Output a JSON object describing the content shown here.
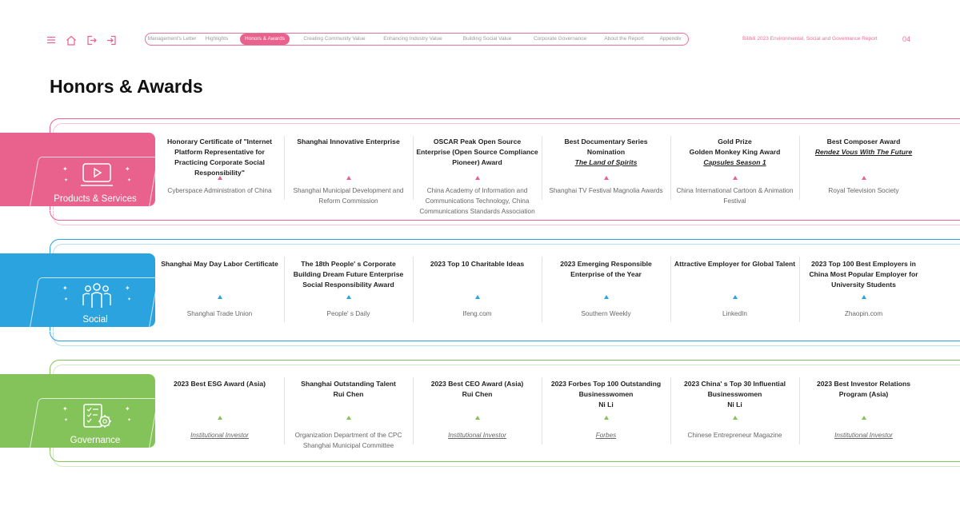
{
  "nav": {
    "icons": [
      "menu-icon",
      "home-icon",
      "exit-icon",
      "enter-icon"
    ],
    "items": [
      {
        "label": "Management's Letter"
      },
      {
        "label": "Highlights"
      },
      {
        "label": "Honors & Awards",
        "active": true
      },
      {
        "label": "Creating Community Value"
      },
      {
        "label": "Enhancing Industry Value"
      },
      {
        "label": "Building Social Value"
      },
      {
        "label": "Corporate Governance"
      },
      {
        "label": "About the Report"
      },
      {
        "label": "Appendix"
      }
    ],
    "report_title": "Bilibili 2023 Environmental, Social and Governance Report",
    "page_number": "04"
  },
  "heading": "Honors & Awards",
  "colors": {
    "pink": "#e9618d",
    "blue": "#2ba3de",
    "green": "#84c35a"
  },
  "sections": [
    {
      "title": "Products & Services",
      "icon": "video-play-icon",
      "awards": [
        {
          "name": "Honorary Certificate of \"Internet Platform Representative for Practicing Corporate Social Responsibility\"",
          "source": "Cyberspace Administration of China"
        },
        {
          "name": "Shanghai Innovative Enterprise",
          "source": "Shanghai Municipal Development and Reform Commission"
        },
        {
          "name": "OSCAR Peak Open Source Enterprise (Open Source Compliance Pioneer) Award",
          "source": "China Academy of Information and Communications Technology, China Communications Standards Association"
        },
        {
          "name": "Best Documentary Series Nomination",
          "name_italic": "The Land of Spirits",
          "source": "Shanghai TV Festival Magnolia Awards"
        },
        {
          "name": "Gold Prize",
          "name_line2": "Golden Monkey King Award",
          "name_italic": "Capsules Season 1",
          "source": "China International Cartoon & Animation Festival"
        },
        {
          "name": "Best Composer Award",
          "name_italic": "Rendez Vous With The Future",
          "source": "Royal Television Society"
        }
      ]
    },
    {
      "title": "Social",
      "icon": "people-group-icon",
      "awards": [
        {
          "name": "Shanghai May Day Labor Certificate",
          "source": "Shanghai Trade Union"
        },
        {
          "name": "The 18th People' s Corporate Building Dream Future Enterprise Social Responsibility Award",
          "source": "People' s Daily"
        },
        {
          "name": "2023 Top 10 Charitable Ideas",
          "source": "Ifeng.com"
        },
        {
          "name": "2023 Emerging Responsible Enterprise of the Year",
          "source": "Southern Weekly"
        },
        {
          "name": "Attractive Employer for Global Talent",
          "source": "LinkedIn"
        },
        {
          "name": "2023 Top 100 Best Employers in China Most Popular Employer for University Students",
          "source": "Zhaopin.com"
        }
      ]
    },
    {
      "title": "Governance",
      "icon": "checklist-gear-icon",
      "awards": [
        {
          "name": "2023 Best ESG Award (Asia)",
          "source": "Institutional Investor",
          "source_italic": true
        },
        {
          "name": "Shanghai Outstanding Talent",
          "name_line2": "Rui Chen",
          "source": "Organization Department of the CPC Shanghai Municipal Committee"
        },
        {
          "name": "2023 Best CEO Award (Asia)",
          "name_line2": "Rui Chen",
          "source": "Institutional Investor",
          "source_italic": true
        },
        {
          "name": "2023 Forbes Top 100 Outstanding Businesswomen",
          "name_line2": "Ni Li",
          "source": "Forbes",
          "source_italic": true
        },
        {
          "name": "2023 China' s Top 30 Influential Businesswomen",
          "name_line2": "Ni Li",
          "source": "Chinese Entrepreneur Magazine"
        },
        {
          "name": "2023 Best Investor Relations Program (Asia)",
          "source": "Institutional Investor",
          "source_italic": true
        }
      ]
    }
  ]
}
